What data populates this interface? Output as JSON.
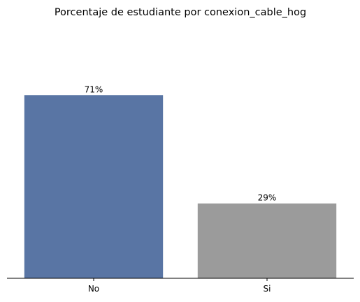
{
  "chart_data": {
    "type": "bar",
    "title": "Porcentaje de estudiante por conexion_cable_hog",
    "xlabel": "",
    "ylabel": "",
    "categories": [
      "No",
      "Si"
    ],
    "values": [
      71,
      29
    ],
    "value_labels": [
      "71%",
      "29%"
    ],
    "ylim": [
      0,
      100
    ],
    "grid": false,
    "legend": "none",
    "colors": [
      "#5975a4",
      "#9b9b9b"
    ]
  }
}
